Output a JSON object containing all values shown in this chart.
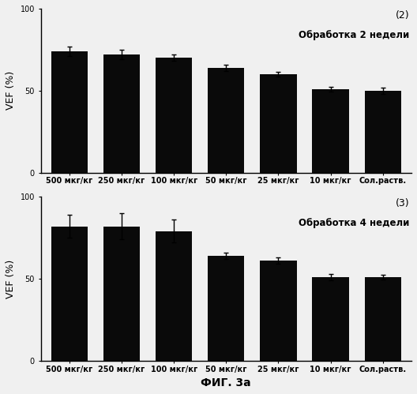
{
  "chart1": {
    "label_num": "(2)",
    "title": "Обработка 2 недели",
    "categories": [
      "500 мкг/кг",
      "250 мкг/кг",
      "100 мкг/кг",
      "50 мкг/кг",
      "25 мкг/кг",
      "10 мкг/кг",
      "Сол.раств."
    ],
    "values": [
      74,
      72,
      70,
      64,
      60,
      51,
      50
    ],
    "errors": [
      3,
      3,
      2,
      2,
      1.5,
      1.5,
      2
    ],
    "ylim": [
      0,
      100
    ],
    "ylabel": "VEF (%)",
    "bar_color": "#0a0a0a"
  },
  "chart2": {
    "label_num": "(3)",
    "title": "Обработка 4 недели",
    "categories": [
      "500 мкг/кг",
      "250 мкг/кг",
      "100 мкг/кг",
      "50 мкг/кг",
      "25 мкг/кг",
      "10 мкг/кг",
      "Сол.раств."
    ],
    "values": [
      82,
      82,
      79,
      64,
      61,
      51,
      51
    ],
    "errors": [
      7,
      8,
      7,
      2,
      2,
      2,
      1.5
    ],
    "ylim": [
      0,
      100
    ],
    "ylabel": "VEF (%)",
    "bar_color": "#0a0a0a"
  },
  "xlabel": "ФИГ. 3а",
  "background_color": "#f0f0f0",
  "tick_fontsize": 7,
  "ylabel_fontsize": 9,
  "title_fontsize": 8.5,
  "num_fontsize": 9,
  "xlabel_fontsize": 10
}
